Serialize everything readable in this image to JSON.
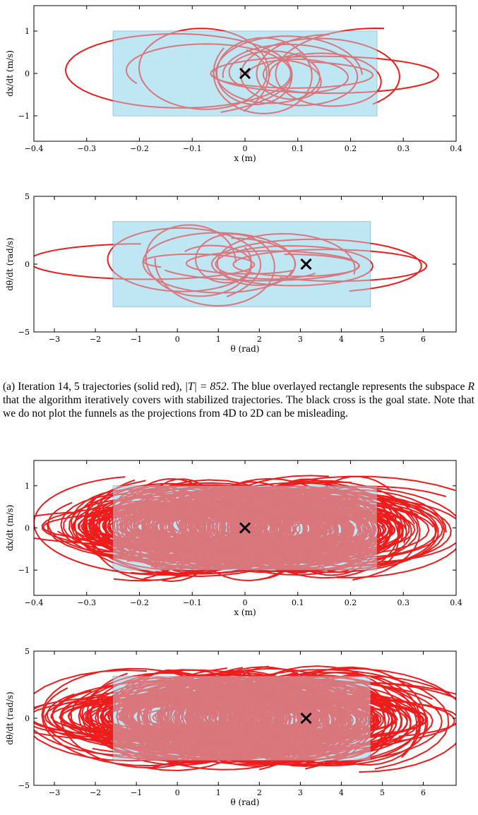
{
  "caption": {
    "prefix": "(a) Iteration 14, 5 trajectories (solid red),",
    "set_size": "|T| = 852",
    "rest": ". The blue overlayed rectangle represents the subspace",
    "symbol": "R",
    "tail": "that the algorithm iteratively covers with stabilized trajectories. The black cross is the goal state. Note that we do not plot the funnels as the projections from 4D to 2D can be misleading."
  },
  "colors": {
    "trajectory": "#ee1c1c",
    "trajectory_over_region": "#c4636f",
    "region_fill": "#bfe6f3",
    "region_stroke": "#8fb8d8",
    "goal": "#000000"
  },
  "chart_data": [
    {
      "type": "scatter",
      "panel": "iteration-14-cart",
      "xlabel": "x (m)",
      "ylabel": "dx/dt (m/s)",
      "xlim": [
        -0.4,
        0.4
      ],
      "ylim": [
        -1.6,
        1.6
      ],
      "xticks": [
        "−0.4",
        "−0.3",
        "−0.2",
        "−0.1",
        "0",
        "0.1",
        "0.2",
        "0.3",
        "0.4"
      ],
      "xtick_values": [
        -0.4,
        -0.3,
        -0.2,
        -0.1,
        0,
        0.1,
        0.2,
        0.3,
        0.4
      ],
      "yticks": [
        "−1",
        "0",
        "1"
      ],
      "ytick_values": [
        -1,
        0,
        1
      ],
      "region": {
        "x": [
          -0.25,
          0.25
        ],
        "y": [
          -1,
          1
        ]
      },
      "goal": {
        "x": 0,
        "y": 0
      },
      "trajectories": 5,
      "dense": false
    },
    {
      "type": "scatter",
      "panel": "iteration-14-pole",
      "xlabel": "θ (rad)",
      "ylabel": "dθ/dt (rad/s)",
      "xlim": [
        -3.5,
        6.8
      ],
      "ylim": [
        -5,
        5
      ],
      "xticks": [
        "−3",
        "−2",
        "−1",
        "0",
        "1",
        "2",
        "3",
        "4",
        "5",
        "6"
      ],
      "xtick_values": [
        -3,
        -2,
        -1,
        0,
        1,
        2,
        3,
        4,
        5,
        6
      ],
      "yticks": [
        "−5",
        "0",
        "5"
      ],
      "ytick_values": [
        -5,
        0,
        5
      ],
      "region": {
        "x": [
          -1.57,
          4.71
        ],
        "y": [
          -3.14,
          3.14
        ]
      },
      "goal": {
        "x": 3.14,
        "y": 0
      },
      "trajectories": 5,
      "dense": false
    },
    {
      "type": "scatter",
      "panel": "final-cart",
      "xlabel": "x (m)",
      "ylabel": "dx/dt (m/s)",
      "xlim": [
        -0.4,
        0.4
      ],
      "ylim": [
        -1.6,
        1.6
      ],
      "xticks": [
        "−0.4",
        "−0.3",
        "−0.2",
        "−0.1",
        "0",
        "0.1",
        "0.2",
        "0.3",
        "0.4"
      ],
      "xtick_values": [
        -0.4,
        -0.3,
        -0.2,
        -0.1,
        0,
        0.1,
        0.2,
        0.3,
        0.4
      ],
      "yticks": [
        "−1",
        "0",
        "1"
      ],
      "ytick_values": [
        -1,
        0,
        1
      ],
      "region": {
        "x": [
          -0.25,
          0.25
        ],
        "y": [
          -1,
          1
        ]
      },
      "goal": {
        "x": 0,
        "y": 0
      },
      "dense": true
    },
    {
      "type": "scatter",
      "panel": "final-pole",
      "xlabel": "θ (rad)",
      "ylabel": "dθ/dt (rad/s)",
      "xlim": [
        -3.5,
        6.8
      ],
      "ylim": [
        -5,
        5
      ],
      "xticks": [
        "−3",
        "−2",
        "−1",
        "0",
        "1",
        "2",
        "3",
        "4",
        "5",
        "6"
      ],
      "xtick_values": [
        -3,
        -2,
        -1,
        0,
        1,
        2,
        3,
        4,
        5,
        6
      ],
      "yticks": [
        "−5",
        "0",
        "5"
      ],
      "ytick_values": [
        -5,
        0,
        5
      ],
      "region": {
        "x": [
          -1.57,
          4.71
        ],
        "y": [
          -3.14,
          3.14
        ]
      },
      "goal": {
        "x": 3.14,
        "y": 0
      },
      "dense": true
    }
  ]
}
